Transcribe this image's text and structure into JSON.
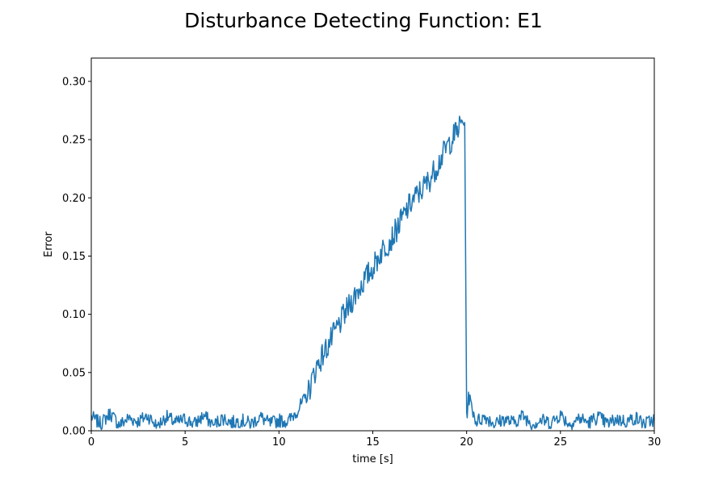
{
  "chart_data": {
    "type": "line",
    "title": "Disturbance Detecting Function: E1",
    "xlabel": "time [s]",
    "ylabel": "Error",
    "xlim": [
      0,
      30
    ],
    "ylim": [
      0,
      0.32
    ],
    "xticks": [
      "0",
      "5",
      "10",
      "15",
      "20",
      "25",
      "30"
    ],
    "yticks": [
      "0.00",
      "0.05",
      "0.10",
      "0.15",
      "0.20",
      "0.25",
      "0.30"
    ],
    "grid": false,
    "legend": "none",
    "series": [
      {
        "color": "#1f77b4",
        "x": [
          0.0,
          0.5,
          1.0,
          1.5,
          2.0,
          2.5,
          3.0,
          3.5,
          4.0,
          4.5,
          5.0,
          5.5,
          6.0,
          6.5,
          7.0,
          7.5,
          8.0,
          8.5,
          9.0,
          9.5,
          10.0,
          10.5,
          11.0,
          11.5,
          12.0,
          12.5,
          13.0,
          13.5,
          14.0,
          14.5,
          15.0,
          15.5,
          16.0,
          16.5,
          17.0,
          17.5,
          18.0,
          18.5,
          19.0,
          19.5,
          19.9,
          20.0,
          20.1,
          20.5,
          21.0,
          21.5,
          22.0,
          22.5,
          23.0,
          23.5,
          24.0,
          24.5,
          25.0,
          25.5,
          26.0,
          26.5,
          27.0,
          27.5,
          28.0,
          28.5,
          29.0,
          29.5,
          30.0
        ],
        "y": [
          0.012,
          0.006,
          0.015,
          0.005,
          0.011,
          0.008,
          0.013,
          0.004,
          0.012,
          0.007,
          0.01,
          0.006,
          0.013,
          0.005,
          0.011,
          0.007,
          0.009,
          0.006,
          0.012,
          0.006,
          0.009,
          0.008,
          0.018,
          0.03,
          0.055,
          0.07,
          0.085,
          0.1,
          0.115,
          0.128,
          0.14,
          0.155,
          0.165,
          0.18,
          0.195,
          0.205,
          0.215,
          0.23,
          0.245,
          0.258,
          0.268,
          0.01,
          0.03,
          0.008,
          0.012,
          0.006,
          0.01,
          0.007,
          0.013,
          0.006,
          0.009,
          0.007,
          0.014,
          0.005,
          0.011,
          0.007,
          0.012,
          0.006,
          0.01,
          0.008,
          0.011,
          0.006,
          0.01
        ]
      }
    ]
  }
}
